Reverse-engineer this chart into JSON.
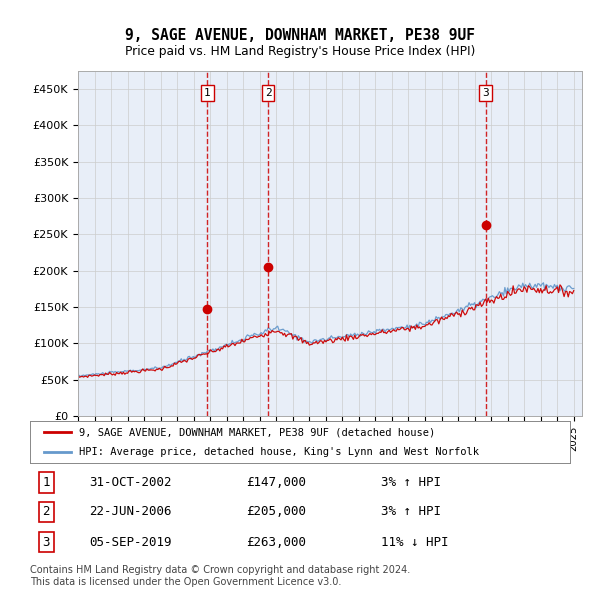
{
  "title": "9, SAGE AVENUE, DOWNHAM MARKET, PE38 9UF",
  "subtitle": "Price paid vs. HM Land Registry's House Price Index (HPI)",
  "legend_line1": "9, SAGE AVENUE, DOWNHAM MARKET, PE38 9UF (detached house)",
  "legend_line2": "HPI: Average price, detached house, King's Lynn and West Norfolk",
  "footnote1": "Contains HM Land Registry data © Crown copyright and database right 2024.",
  "footnote2": "This data is licensed under the Open Government Licence v3.0.",
  "transactions": [
    {
      "num": 1,
      "date": "31-OCT-2002",
      "price": "£147,000",
      "change": "3% ↑ HPI"
    },
    {
      "num": 2,
      "date": "22-JUN-2006",
      "price": "£205,000",
      "change": "3% ↑ HPI"
    },
    {
      "num": 3,
      "date": "05-SEP-2019",
      "price": "£263,000",
      "change": "11% ↓ HPI"
    }
  ],
  "trans_years": [
    2002.833,
    2006.5,
    2019.667
  ],
  "trans_prices": [
    147000,
    205000,
    263000
  ],
  "ylim": [
    0,
    475000
  ],
  "yticks": [
    0,
    50000,
    100000,
    150000,
    200000,
    250000,
    300000,
    350000,
    400000,
    450000
  ],
  "ytick_labels": [
    "£0",
    "£50K",
    "£100K",
    "£150K",
    "£200K",
    "£250K",
    "£300K",
    "£350K",
    "£400K",
    "£450K"
  ],
  "hpi_color": "#6699cc",
  "price_color": "#cc0000",
  "vline_color": "#cc0000",
  "grid_color": "#cccccc",
  "bg_color": "#ffffff",
  "plot_bg": "#e8eef8"
}
